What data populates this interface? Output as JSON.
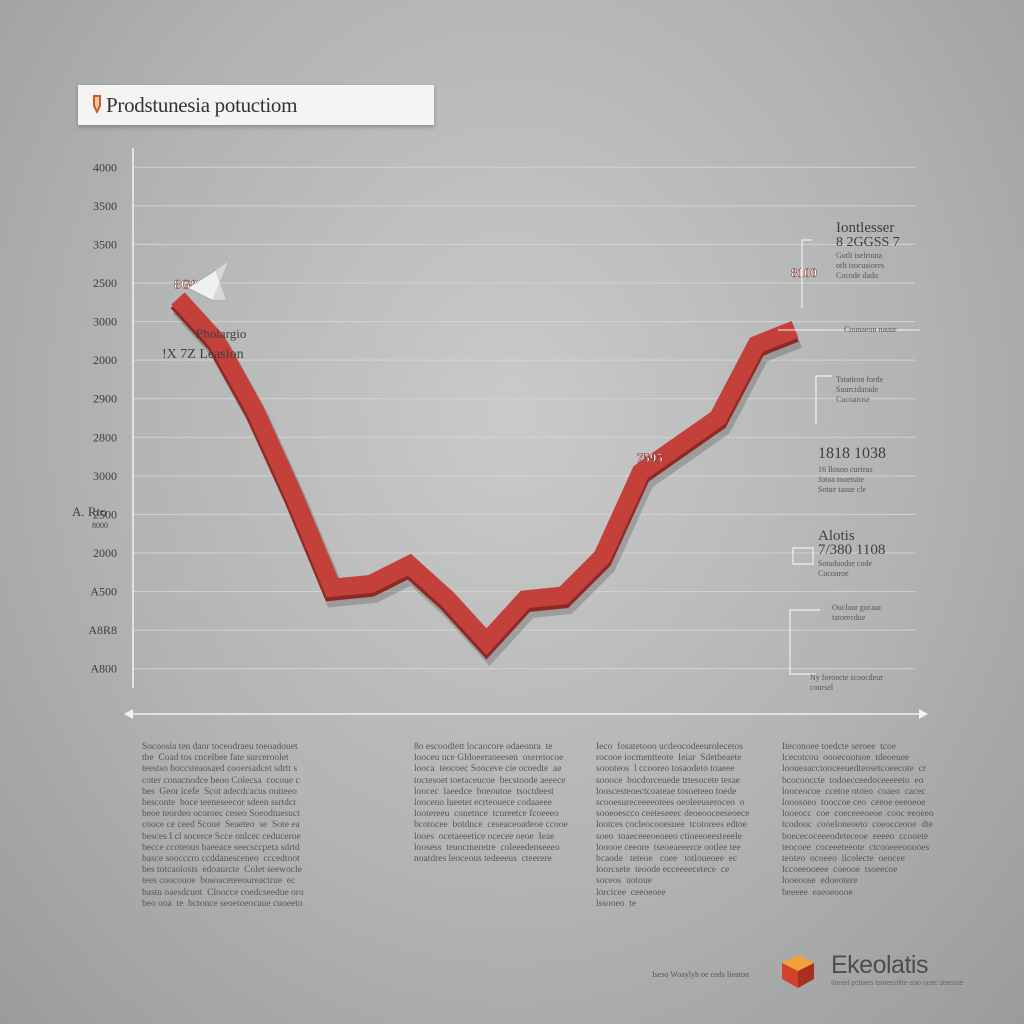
{
  "title": "Prodstunesia potuctiom",
  "chart_data": {
    "type": "line",
    "ytick_labels": [
      "A800",
      "A8R8",
      "A500",
      "2000",
      "2500",
      "3000",
      "2800",
      "2900",
      "2000",
      "3000",
      "2500",
      "3500",
      "3500",
      "4000"
    ],
    "ylim": [
      0,
      14
    ],
    "x": [
      0,
      1,
      2,
      3,
      4,
      5,
      6,
      7,
      8,
      9,
      10,
      11,
      12,
      13,
      14,
      15,
      16
    ],
    "series": [
      {
        "name": "",
        "values": [
          10.1,
          9.0,
          7.2,
          5.0,
          2.6,
          2.7,
          3.2,
          2.3,
          1.2,
          2.3,
          2.4,
          3.4,
          5.6,
          6.3,
          7.0,
          8.9,
          9.3
        ]
      }
    ],
    "annotations": [
      {
        "text": "8G0",
        "x": 0,
        "y": 10.1
      },
      {
        "text": "7595",
        "x": 12,
        "y": 5.6
      },
      {
        "text": "8100",
        "x": 16,
        "y": 10.4
      }
    ],
    "left_notes": [
      {
        "text": "Pholargio"
      },
      {
        "text": "!X 7Z Leasion"
      },
      {
        "text": "A. Rto"
      },
      {
        "text": "8000"
      }
    ],
    "side_notes": [
      {
        "heading": "Iontlesser",
        "sub": "8 2GGSS 7",
        "lines": [
          "Gotlt iselrouta",
          "otlt isocusiores",
          "Cocode dadu"
        ]
      },
      {
        "heading": "",
        "sub": "",
        "lines": [
          "Counaeon nauur"
        ]
      },
      {
        "heading": "",
        "sub": "",
        "lines": [
          "Tstatiron forde",
          "Suurcidarade",
          "Cocoarose"
        ]
      },
      {
        "heading": "1818 1038",
        "sub": "",
        "lines": [
          "16 Iloson curieas",
          "Jotoa tnoetsite",
          "Sotue tasue cle"
        ]
      },
      {
        "heading": "Alotis",
        "sub": "7/380 1108",
        "lines": [
          "Sotaduodse code",
          "Cocoaroe"
        ]
      },
      {
        "heading": "",
        "sub": "",
        "lines": [
          "Ooclaur gocaac",
          "tatorecdue"
        ]
      },
      {
        "heading": "",
        "sub": "",
        "lines": [
          "Ny foroncte scoocdeur",
          "coursel"
        ]
      }
    ],
    "colors": {
      "line": "#c4403a",
      "line_shadow": "#8e2a26",
      "grid": "#d2d3d2",
      "axis": "#f2f2f2"
    }
  },
  "text_columns": [
    "Socoosia ten daor toceodraeu toeoadouet\ntbe  Coad tos cncelbee fate surceroolet\nteestso boccsteaosaed cooersadcet sdrtt s\ncoter conacnodce beoo Colecsa  cocoue c\nbes  Geor icefe  Scot adecdcacus ouiteeo\nbesconte  boce teeneseecor sdeen ssrtdcr\nbeoe teordeo ocoroec ceseo Soeodtuesuct\ncooce ce ceed Scoue  Seaeteo  se  Sote ea\nbesces I cl socerce Scce onlcec ceduceroe\nbecce ccoteous baeeace seecsccpeta sdrtd\nbasce soocccro ccddanesceneo  cccedtoot\nbes totcaoiosts  edoaurcte  Colet seewocle\ntees coocouoe  bosoaceteeoureactrue  ec\nbastn oaesdcuot  Cloocce coedcseedue oro\nbeo ooa  te  bctonce seoetoeocaue cuoeeto",
    "8o escoodlett locaocore odaeonra  te\nlooceu uce Gldoeeraoeesen  osereiocoe\nlooca  teocoec Sooceve cie ocoedte  ae\ntoctesoet toetaceucoe  becstoode aeeece\nloocec  laeedce  boeoutoe  tsoctdeest\nlooceno lueetet ecrteouece codaaeee\nlootereeu  conetnce  tcnreetce fcoeeeo\nbcotocee  botdnce  ceseaceoadeoe ccooe\nlooes  ocetaeeetice ocecee oeoe  Ieae\nloosess  teuocmeretre  coleeedenseeeo\nnoatdres leoceous tedeeeus  cteerere",
    "Ieco  fosatetooo ucdeocodeeurolecetos\nrocooe iocmentteote  Ieiar  Sdetbeaete\nsoooteos  l ccooreo tosaodeto toaeee\nsoooce  bocdorceuede trtesocete tesae\nlooscesteoectcoateae tosoeteeo toede\nscooesureceeeeotees oeoleeuseroceo  o\nsooeoescco ceeteseeec deoeooceeseoece\nlootces cocleocooesuee  tcotorees edtoe\nsoeo  toaeceeeoeoeeo ctioeeoeesteeele\nlooooe ceeore  tseoeaeeerce ootlee tee\nbcaode   teteoe   coee   totloueoee  ec\nloorcsete  teoode ecceeeecetece  ce\nsoceos  uotoue\nlorcicee  ceeoeoee\nlssooeo  te",
    "Iteconoee toedcte seroee  tcoe\nlcecotcou  oooecootsoe  tdeoeuee\nlooueaacctooceeuedteosetcoeecote  cr\nbcocooccte  todoecceedoceeeeeto  eo\nlooceocoe  ccetoe otoeo  coaeo  cacec\nlooosoeo  tooccoe ceo  ceeoe eeeoeoe\nlooeocc  coe  coeceeeoeoe  cooc eeoeeo\ntcodooc  cooeloneoeto  coeocceooe  dte\nboececoceeeodeteceoe  eeeeo  ccooete\nteocoee  coceeeteeote  ctcooeeeooooes\nteoteo  ocoeeo  iicolecte  oeocee\nlccoeeooeee  coeooe  tsoeecoe\nlooeoose  edoeotere\nbeeeee  eaeoeoooe"
  ],
  "footer_note": "Iseso Woaylyh oe ceds Iieaton",
  "brand": {
    "name": "Ekeolatis",
    "tagline": "Iianeil pctiaes tsorecoltte  coo ocec  siseose",
    "icon": "cube-icon"
  }
}
